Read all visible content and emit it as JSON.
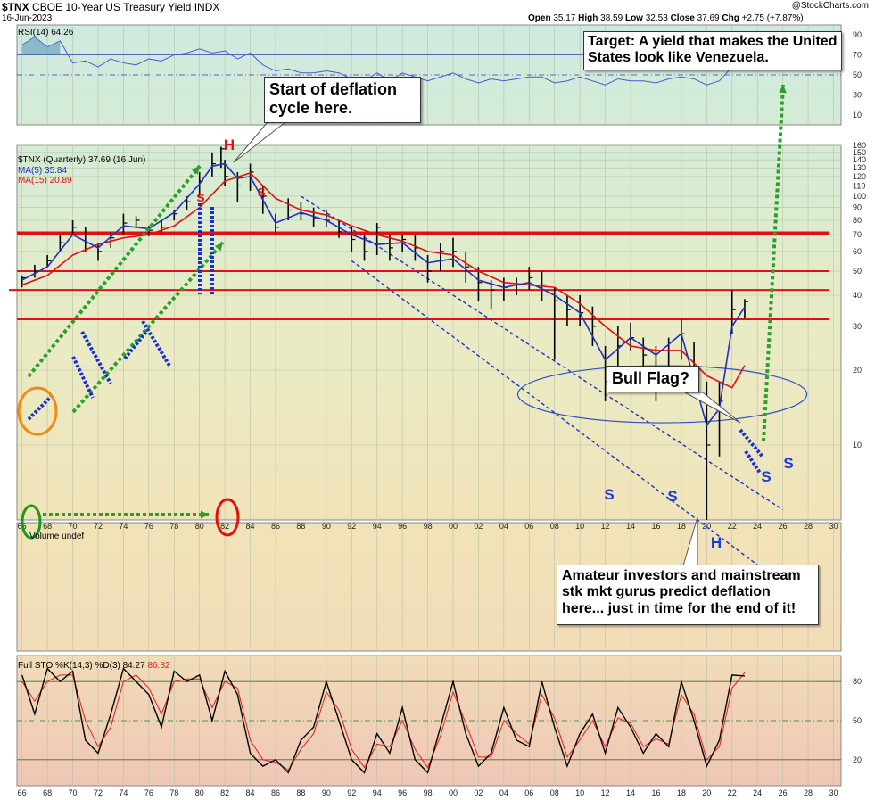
{
  "header": {
    "symbol": "$TNX",
    "name": "CBOE 10-Year US Treasury Yield",
    "exchange": "INDX",
    "date": "16-Jun-2023",
    "watermark": "@StockCharts.com",
    "ohlc": {
      "open_label": "Open",
      "open": "35.17",
      "high_label": "High",
      "high": "38.59",
      "low_label": "Low",
      "low": "32.53",
      "close_label": "Close",
      "close": "37.69",
      "chg_label": "Chg",
      "chg": "+2.75 (+7.87%)"
    }
  },
  "colors": {
    "price_bar": "#000000",
    "ma5": "#1f2fbf",
    "ma15": "#e01010",
    "rsi": "#4a5bd0",
    "sto_k": "#000000",
    "sto_d": "#e02020",
    "trend_arrow": "#2aa02a",
    "flag": "#1a2fd0",
    "support_line": "#e01010",
    "head_label": "#e01010",
    "shoulder_label_red": "#e01010",
    "shoulder_label_blue": "#1a3fd0",
    "annotation_ring_orange": "#f08a10",
    "annotation_ring_green": "#1a9a1a",
    "annotation_ring_red": "#e01010"
  },
  "annotations": {
    "target": "Target:  A yield that makes the United States look like Venezuela.",
    "deflation_start": "Start of deflation cycle here.",
    "bull_flag": "Bull Flag?",
    "amateurs": "Amateur investors and mainstream stk mkt gurus predict deflation here... just in time for the end of it!",
    "head_top": "H",
    "head_bottom": "H",
    "shoulder_s": "s",
    "shoulder_S": "S"
  },
  "chart_data": [
    {
      "type": "line",
      "panel": "rsi",
      "label": "RSI(14)",
      "value": "64.26",
      "ylim": [
        0,
        100
      ],
      "ticks": [
        10,
        30,
        50,
        70,
        90
      ],
      "reference_lines": [
        70,
        50,
        30
      ],
      "x": [
        1966,
        1967,
        1968,
        1969,
        1970,
        1971,
        1972,
        1973,
        1974,
        1975,
        1976,
        1977,
        1978,
        1979,
        1980,
        1981,
        1982,
        1983,
        1984,
        1985,
        1986,
        1987,
        1988,
        1989,
        1990,
        1991,
        1992,
        1993,
        1994,
        1995,
        1996,
        1997,
        1998,
        1999,
        2000,
        2001,
        2002,
        2003,
        2004,
        2005,
        2006,
        2007,
        2008,
        2009,
        2010,
        2011,
        2012,
        2013,
        2014,
        2015,
        2016,
        2017,
        2018,
        2019,
        2020,
        2021,
        2022,
        2023
      ],
      "values": [
        80,
        88,
        78,
        84,
        62,
        64,
        58,
        66,
        62,
        60,
        66,
        64,
        70,
        72,
        76,
        72,
        74,
        66,
        72,
        60,
        54,
        56,
        52,
        52,
        54,
        52,
        46,
        44,
        52,
        44,
        52,
        48,
        44,
        48,
        52,
        46,
        42,
        46,
        44,
        46,
        48,
        48,
        42,
        44,
        48,
        44,
        40,
        46,
        44,
        44,
        42,
        46,
        48,
        46,
        40,
        44,
        58,
        64.26
      ]
    },
    {
      "type": "line",
      "panel": "price",
      "title": "$TNX (Quarterly) 37.69 (16 Jun)",
      "log_scale": true,
      "ylim": [
        5,
        160
      ],
      "yticks": [
        10,
        20,
        30,
        40,
        50,
        60,
        70,
        80,
        90,
        100,
        110,
        120,
        130,
        140,
        150,
        160
      ],
      "xlim": [
        1965.6,
        2030.6
      ],
      "xticks": [
        "66",
        "68",
        "70",
        "72",
        "74",
        "76",
        "78",
        "80",
        "82",
        "84",
        "86",
        "88",
        "90",
        "92",
        "94",
        "96",
        "98",
        "00",
        "02",
        "04",
        "06",
        "08",
        "10",
        "12",
        "14",
        "16",
        "18",
        "20",
        "22",
        "24",
        "26",
        "28",
        "30"
      ],
      "series": [
        {
          "name": "$TNX",
          "style": "bars",
          "x": [
            1966,
            1967,
            1968,
            1969,
            1970,
            1971,
            1972,
            1973,
            1974,
            1975,
            1976,
            1977,
            1978,
            1979,
            1980,
            1981,
            1981.7,
            1982,
            1983,
            1984,
            1985,
            1986,
            1987,
            1988,
            1989,
            1990,
            1991,
            1992,
            1993,
            1994,
            1995,
            1996,
            1997,
            1998,
            1999,
            2000,
            2001,
            2002,
            2003,
            2004,
            2005,
            2006,
            2007,
            2008,
            2009,
            2010,
            2011,
            2012,
            2013,
            2014,
            2015,
            2016,
            2017,
            2018,
            2019,
            2020,
            2021,
            2022,
            2023
          ],
          "values": [
            47,
            50,
            55,
            65,
            75,
            65,
            60,
            68,
            78,
            80,
            73,
            75,
            85,
            95,
            115,
            135,
            155,
            120,
            110,
            125,
            100,
            75,
            88,
            85,
            82,
            80,
            72,
            67,
            60,
            75,
            62,
            67,
            62,
            50,
            60,
            60,
            52,
            45,
            42,
            43,
            44,
            47,
            44,
            38,
            35,
            34,
            30,
            18,
            25,
            27,
            23,
            20,
            24,
            28,
            20,
            10,
            15,
            35,
            37.69
          ],
          "highs": [
            48,
            53,
            58,
            70,
            80,
            75,
            65,
            72,
            85,
            83,
            76,
            80,
            88,
            100,
            125,
            150,
            158,
            140,
            125,
            135,
            110,
            85,
            98,
            95,
            90,
            88,
            80,
            75,
            70,
            78,
            70,
            70,
            70,
            58,
            65,
            68,
            60,
            52,
            46,
            47,
            47,
            52,
            50,
            43,
            40,
            40,
            36,
            25,
            30,
            31,
            27,
            25,
            27,
            32,
            26,
            18,
            18,
            42,
            38.59
          ],
          "lows": [
            43,
            47,
            52,
            60,
            70,
            60,
            55,
            62,
            70,
            75,
            69,
            70,
            80,
            88,
            100,
            120,
            130,
            110,
            95,
            105,
            85,
            70,
            80,
            80,
            75,
            75,
            68,
            60,
            55,
            58,
            55,
            60,
            55,
            45,
            50,
            52,
            45,
            38,
            35,
            38,
            40,
            42,
            38,
            22,
            30,
            30,
            25,
            15,
            18,
            24,
            20,
            15,
            18,
            22,
            16,
            5,
            9,
            28,
            32.53
          ]
        },
        {
          "name": "MA(5)",
          "value": "35.84",
          "x": [
            1966,
            1968,
            1970,
            1972,
            1974,
            1976,
            1978,
            1980,
            1981,
            1982,
            1983,
            1984,
            1986,
            1988,
            1990,
            1992,
            1994,
            1996,
            1998,
            2000,
            2002,
            2004,
            2006,
            2008,
            2010,
            2012,
            2014,
            2016,
            2018,
            2020,
            2021,
            2022,
            2023
          ],
          "values": [
            46,
            52,
            70,
            62,
            76,
            74,
            86,
            112,
            132,
            135,
            118,
            120,
            78,
            86,
            80,
            70,
            64,
            65,
            54,
            56,
            46,
            43,
            45,
            40,
            34,
            22,
            27,
            23,
            28,
            12,
            14,
            30,
            35.84
          ]
        },
        {
          "name": "MA(15)",
          "value": "20.89",
          "x": [
            1966,
            1968,
            1970,
            1972,
            1974,
            1976,
            1978,
            1980,
            1982,
            1984,
            1986,
            1988,
            1990,
            1992,
            1994,
            1996,
            1998,
            2000,
            2002,
            2004,
            2006,
            2008,
            2010,
            2012,
            2014,
            2016,
            2018,
            2020,
            2022,
            2023
          ],
          "values": [
            44,
            48,
            58,
            64,
            68,
            70,
            76,
            90,
            115,
            124,
            98,
            88,
            84,
            76,
            70,
            66,
            60,
            58,
            50,
            45,
            44,
            43,
            37,
            30,
            25,
            24,
            24,
            19,
            17,
            20.89
          ]
        }
      ],
      "horizontal_lines": [
        71,
        50,
        42,
        32
      ]
    },
    {
      "type": "bar",
      "panel": "volume",
      "label": "Volume undef",
      "values": []
    },
    {
      "type": "line",
      "panel": "stochastic",
      "label": "Full STO %K(14,3) %D(3)",
      "k_value": "84.27",
      "d_value": "86.82",
      "ylim": [
        0,
        100
      ],
      "ticks": [
        20,
        50,
        80
      ],
      "reference_lines": [
        80,
        50,
        20
      ],
      "series": [
        {
          "name": "%K",
          "x": [
            1966,
            1967,
            1968,
            1969,
            1970,
            1971,
            1972,
            1973,
            1974,
            1975,
            1976,
            1977,
            1978,
            1979,
            1980,
            1981,
            1982,
            1983,
            1984,
            1985,
            1986,
            1987,
            1988,
            1989,
            1990,
            1991,
            1992,
            1993,
            1994,
            1995,
            1996,
            1997,
            1998,
            1999,
            2000,
            2001,
            2002,
            2003,
            2004,
            2005,
            2006,
            2007,
            2008,
            2009,
            2010,
            2011,
            2012,
            2013,
            2014,
            2015,
            2016,
            2017,
            2018,
            2019,
            2020,
            2021,
            2022,
            2023
          ],
          "values": [
            85,
            55,
            90,
            80,
            88,
            35,
            25,
            55,
            90,
            80,
            70,
            45,
            88,
            80,
            85,
            50,
            88,
            70,
            25,
            15,
            20,
            10,
            35,
            45,
            80,
            50,
            20,
            10,
            40,
            25,
            60,
            20,
            10,
            45,
            80,
            40,
            15,
            25,
            60,
            35,
            30,
            80,
            45,
            15,
            40,
            55,
            25,
            60,
            45,
            25,
            40,
            30,
            80,
            50,
            15,
            35,
            85,
            84.27
          ]
        },
        {
          "name": "%D",
          "x": [
            1966,
            1967,
            1968,
            1969,
            1970,
            1971,
            1972,
            1973,
            1974,
            1975,
            1976,
            1977,
            1978,
            1979,
            1980,
            1981,
            1982,
            1983,
            1984,
            1985,
            1986,
            1987,
            1988,
            1989,
            1990,
            1991,
            1992,
            1993,
            1994,
            1995,
            1996,
            1997,
            1998,
            1999,
            2000,
            2001,
            2002,
            2003,
            2004,
            2005,
            2006,
            2007,
            2008,
            2009,
            2010,
            2011,
            2012,
            2013,
            2014,
            2015,
            2016,
            2017,
            2018,
            2019,
            2020,
            2021,
            2022,
            2023
          ],
          "values": [
            80,
            65,
            80,
            85,
            85,
            50,
            30,
            45,
            80,
            85,
            75,
            55,
            80,
            82,
            82,
            60,
            80,
            75,
            35,
            20,
            18,
            12,
            28,
            40,
            72,
            58,
            28,
            14,
            32,
            30,
            50,
            28,
            14,
            38,
            72,
            48,
            22,
            22,
            50,
            40,
            32,
            70,
            52,
            22,
            35,
            50,
            30,
            52,
            48,
            30,
            36,
            32,
            70,
            55,
            20,
            30,
            75,
            86.82
          ]
        }
      ]
    }
  ]
}
